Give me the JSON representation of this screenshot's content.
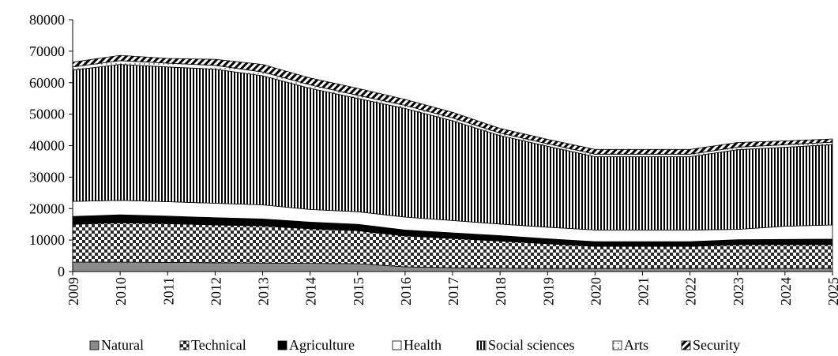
{
  "chart_data": {
    "type": "area",
    "stacked": true,
    "title": "",
    "xlabel": "",
    "ylabel": "",
    "x": [
      "2009",
      "2010",
      "2011",
      "2012",
      "2013",
      "2014",
      "2015",
      "2016",
      "2017",
      "2018",
      "2019",
      "2020",
      "2021",
      "2022",
      "2023",
      "2024",
      "2025"
    ],
    "ylim": [
      0,
      80000
    ],
    "yticks": [
      "0",
      "10000",
      "20000",
      "30000",
      "40000",
      "50000",
      "60000",
      "70000",
      "80000"
    ],
    "grid": false,
    "legend_position": "bottom",
    "series": [
      {
        "name": "Natural",
        "pattern": "solid-gray",
        "values": [
          3000,
          3000,
          2900,
          2800,
          2700,
          2600,
          2500,
          1500,
          1200,
          1100,
          1000,
          1000,
          1000,
          1000,
          1000,
          1000,
          1000
        ]
      },
      {
        "name": "Technical",
        "pattern": "checker",
        "values": [
          12000,
          12500,
          12300,
          12000,
          11800,
          11000,
          10500,
          9800,
          9300,
          8600,
          7800,
          7000,
          7000,
          7000,
          7500,
          7500,
          7500
        ]
      },
      {
        "name": "Agriculture",
        "pattern": "solid-black",
        "values": [
          2500,
          2500,
          2400,
          2300,
          2200,
          2100,
          2000,
          1900,
          1800,
          1700,
          1600,
          1500,
          1500,
          1500,
          1600,
          1700,
          1800
        ]
      },
      {
        "name": "Health",
        "pattern": "white",
        "values": [
          4800,
          4600,
          4600,
          4600,
          4500,
          4000,
          4000,
          4100,
          3900,
          3700,
          3700,
          3700,
          3700,
          3700,
          3300,
          4200,
          4500
        ]
      },
      {
        "name": "Social sciences",
        "pattern": "vertical-lines",
        "values": [
          41700,
          43200,
          42800,
          42600,
          41000,
          38500,
          36000,
          34500,
          31700,
          28100,
          25700,
          23300,
          23300,
          23300,
          25300,
          25100,
          25500
        ]
      },
      {
        "name": "Arts",
        "pattern": "white-dotted",
        "values": [
          1000,
          1200,
          1200,
          1200,
          1200,
          1100,
          1000,
          1000,
          900,
          800,
          800,
          800,
          800,
          800,
          800,
          800,
          800
        ]
      },
      {
        "name": "Security",
        "pattern": "diagonal",
        "values": [
          1500,
          1700,
          1500,
          1900,
          2400,
          2200,
          2200,
          1900,
          1800,
          1500,
          1400,
          1500,
          1500,
          1500,
          1500,
          1200,
          1000
        ]
      }
    ]
  }
}
